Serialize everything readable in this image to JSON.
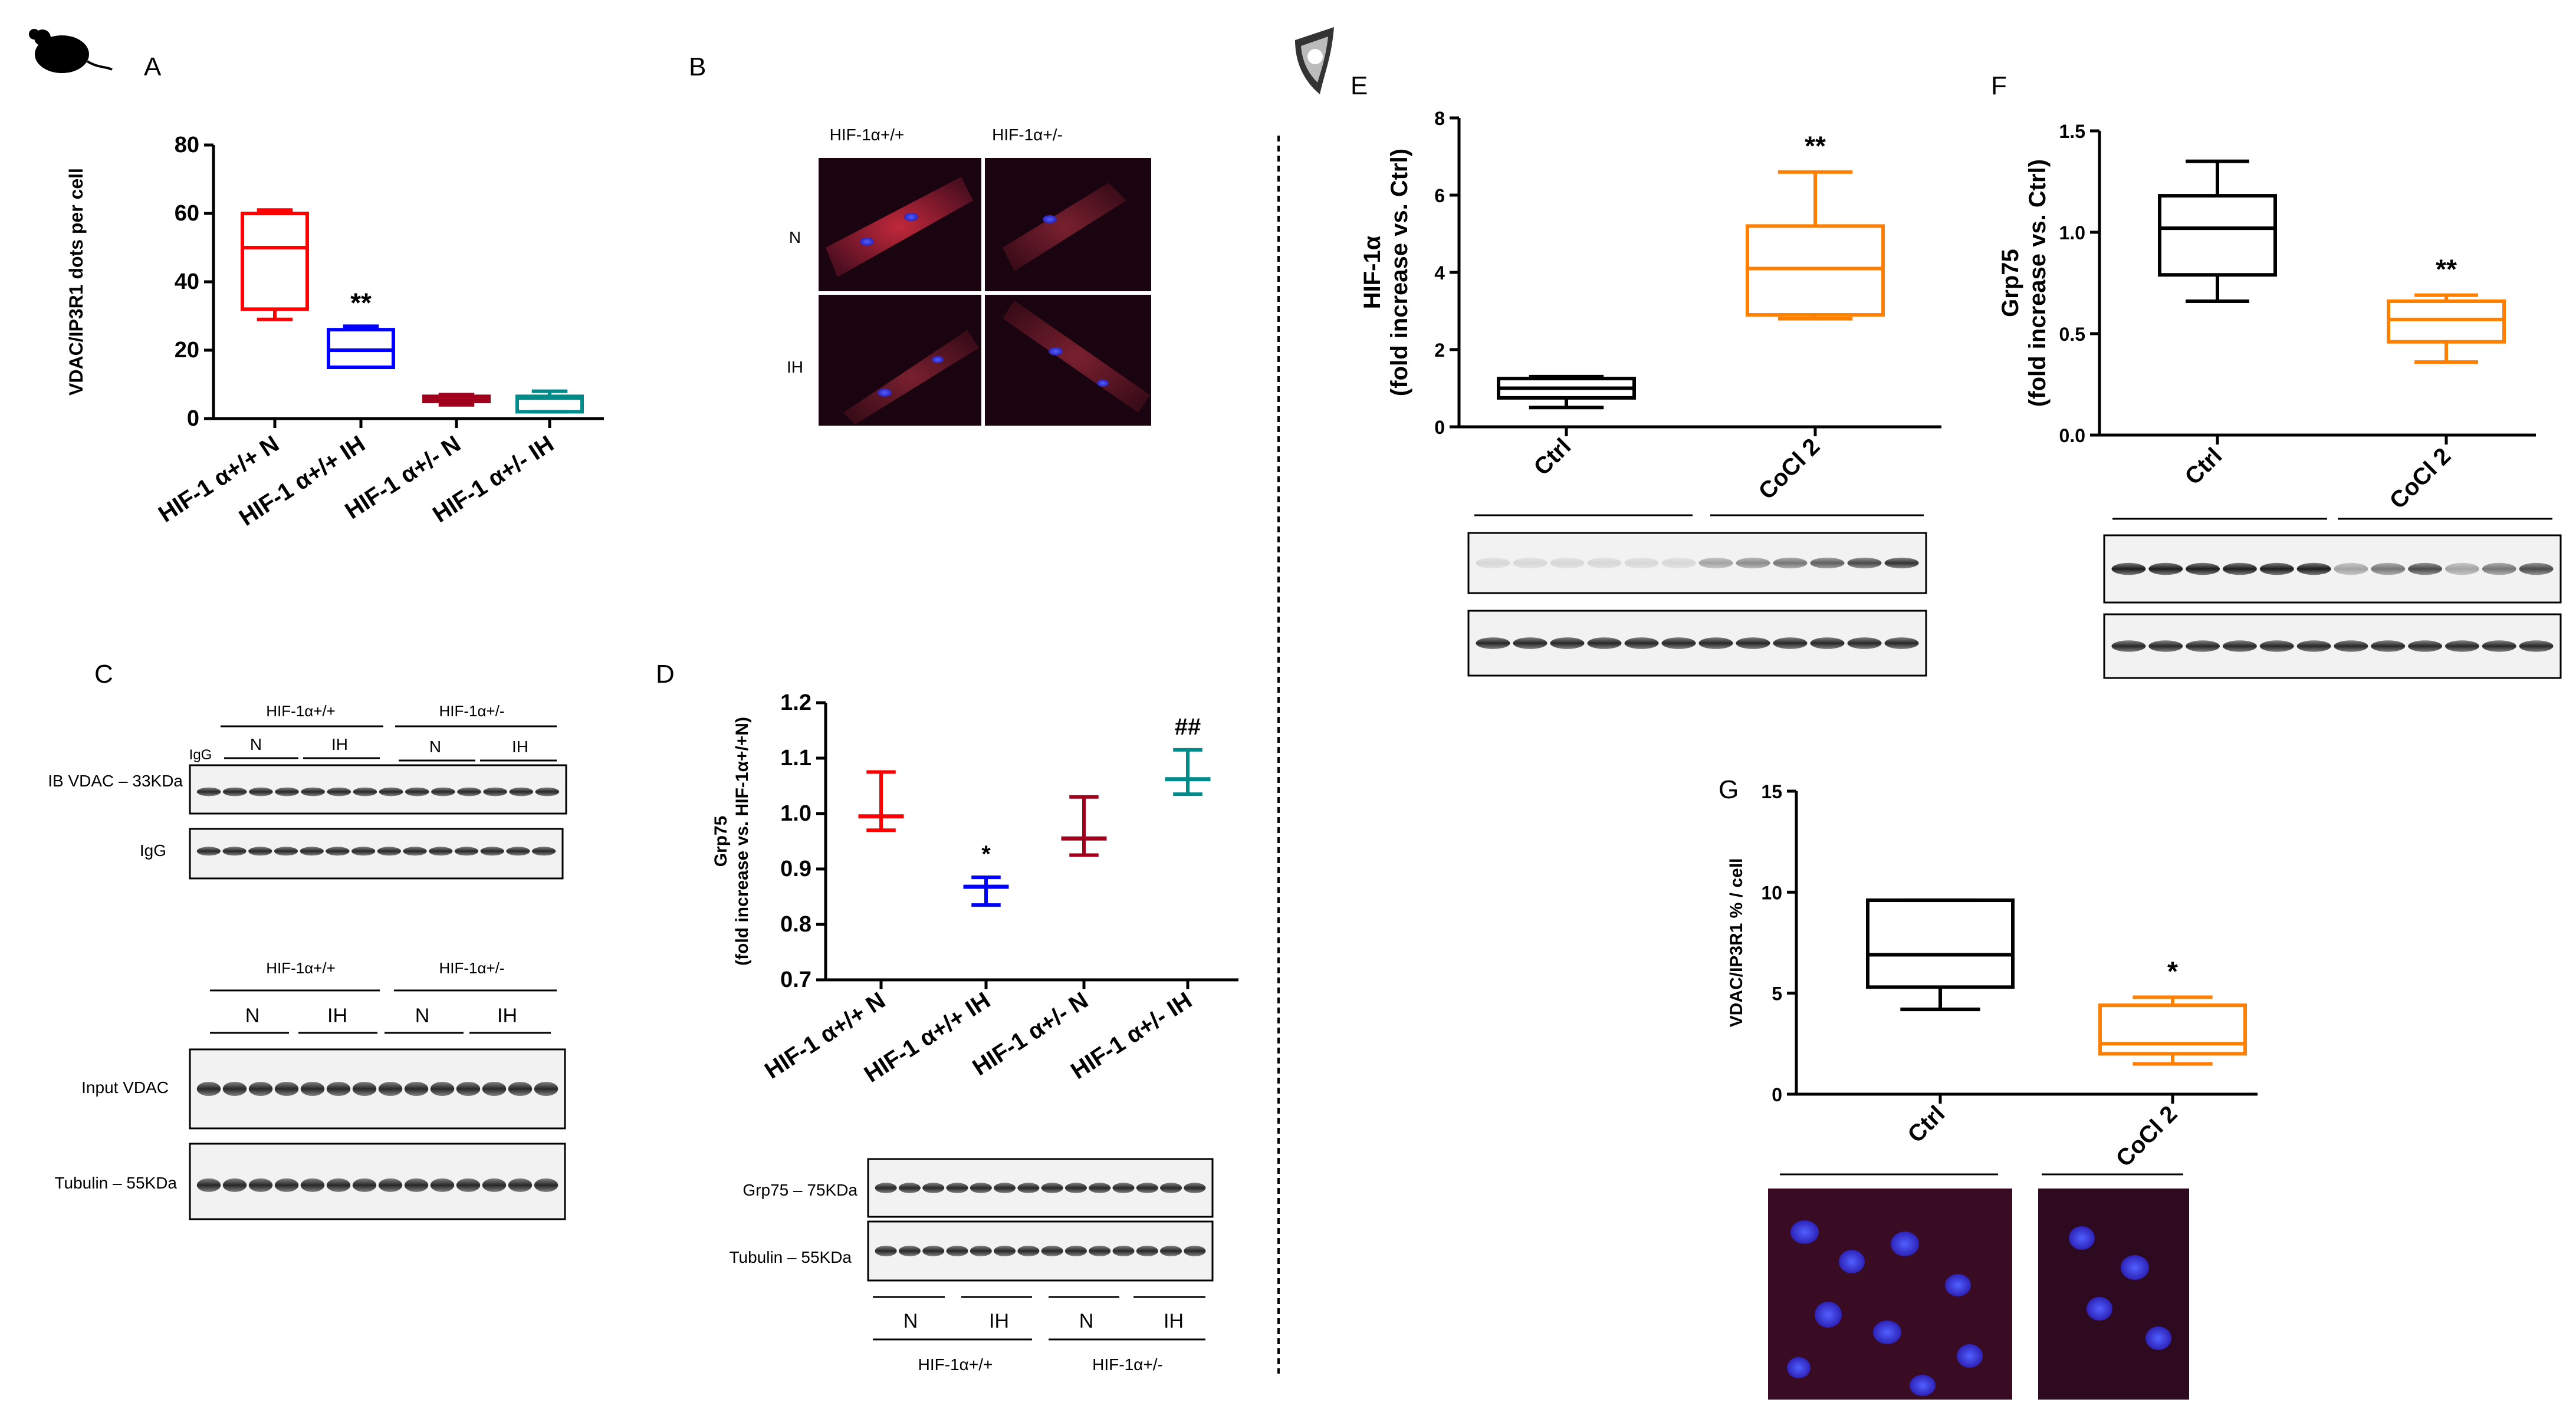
{
  "panels": {
    "A": {
      "letter": "A"
    },
    "B": {
      "letter": "B",
      "col_labels": [
        "HIF-1α+/+",
        "HIF-1α+/-"
      ],
      "row_labels": [
        "N",
        "IH"
      ]
    },
    "C": {
      "letter": "C",
      "top_groups": [
        "HIF-1α+/+",
        "HIF-1α+/-"
      ],
      "top_conditions": [
        "N",
        "IH",
        "N",
        "IH"
      ],
      "igg_lane": "IgG",
      "blot_labels": [
        "IB VDAC – 33KDa",
        "IgG"
      ],
      "bottom_groups": [
        "HIF-1α+/+",
        "HIF-1α+/-"
      ],
      "bottom_conditions": [
        "N",
        "IH",
        "N",
        "IH"
      ],
      "bottom_blot_labels": [
        "Input VDAC",
        "Tubulin – 55KDa"
      ]
    },
    "D": {
      "letter": "D",
      "blot_labels": [
        "Grp75 – 75KDa",
        "Tubulin – 55KDa"
      ],
      "conditions": [
        "N",
        "IH",
        "N",
        "IH"
      ],
      "groups": [
        "HIF-1α+/+",
        "HIF-1α+/-"
      ]
    },
    "E": {
      "letter": "E",
      "blot_groups": [
        "Ctrl",
        "CoCl2"
      ]
    },
    "F": {
      "letter": "F",
      "blot_groups": [
        "Ctrl",
        "CoCl2"
      ]
    },
    "G": {
      "letter": "G"
    }
  },
  "chart_data": [
    {
      "panel": "A",
      "type": "box",
      "ylabel": "VDAC/IP3R1 dots per cell",
      "ylim": [
        0,
        80
      ],
      "yticks": [
        "0",
        "20",
        "40",
        "60",
        "80"
      ],
      "categories": [
        "HIF-1  α+/+ N",
        "HIF-1  α+/+ IH",
        "HIF-1  α+/- N",
        "HIF-1  α+/- IH"
      ],
      "series": [
        {
          "color": "#ff0000",
          "min": 29,
          "q1": 32,
          "median": 50,
          "q3": 60,
          "max": 61
        },
        {
          "color": "#0000ff",
          "min": 15,
          "q1": 15,
          "median": 20,
          "q3": 26,
          "max": 27,
          "sig": "**"
        },
        {
          "color": "#a0001c",
          "min": 4,
          "q1": 5,
          "median": 5.5,
          "q3": 6.5,
          "max": 7
        },
        {
          "color": "#008b8b",
          "min": 2,
          "q1": 2,
          "median": 6,
          "q3": 6.5,
          "max": 8
        }
      ]
    },
    {
      "panel": "D",
      "type": "errorbar",
      "ylabel": "Grp75",
      "ylabel2": "(fold increase vs. HIF-1α+/+N)",
      "ylim": [
        0.7,
        1.2
      ],
      "yticks": [
        "0.7",
        "0.8",
        "0.9",
        "1.0",
        "1.1",
        "1.2"
      ],
      "categories": [
        "HIF-1  α+/+ N",
        "HIF-1  α+/+ IH",
        "HIF-1  α+/- N",
        "HIF-1  α+/- IH"
      ],
      "series": [
        {
          "color": "#ff0000",
          "mean": 0.995,
          "low": 0.97,
          "high": 1.075
        },
        {
          "color": "#0000ff",
          "mean": 0.868,
          "low": 0.835,
          "high": 0.885,
          "sig": "*"
        },
        {
          "color": "#a0001c",
          "mean": 0.955,
          "low": 0.925,
          "high": 1.03
        },
        {
          "color": "#008b8b",
          "mean": 1.062,
          "low": 1.035,
          "high": 1.115,
          "sig": "##"
        }
      ]
    },
    {
      "panel": "E",
      "type": "box",
      "ylabel": "HIF-1α",
      "ylabel2": "(fold increase vs. Ctrl)",
      "ylim": [
        0,
        8
      ],
      "yticks": [
        "0",
        "2",
        "4",
        "6",
        "8"
      ],
      "categories": [
        "Ctrl",
        "CoCl 2"
      ],
      "series": [
        {
          "color": "#000000",
          "min": 0.5,
          "q1": 0.75,
          "median": 1.0,
          "q3": 1.25,
          "max": 1.3
        },
        {
          "color": "#ff8000",
          "min": 2.8,
          "q1": 2.9,
          "median": 4.1,
          "q3": 5.2,
          "max": 6.6,
          "sig": "**"
        }
      ]
    },
    {
      "panel": "F",
      "type": "box",
      "ylabel": "Grp75",
      "ylabel2": "(fold increase vs. Ctrl)",
      "ylim": [
        0,
        1.5
      ],
      "yticks": [
        "0.0",
        "0.5",
        "1.0",
        "1.5"
      ],
      "categories": [
        "Ctrl",
        "CoCl 2"
      ],
      "series": [
        {
          "color": "#000000",
          "min": 0.66,
          "q1": 0.79,
          "median": 1.02,
          "q3": 1.18,
          "max": 1.35
        },
        {
          "color": "#ff8000",
          "min": 0.36,
          "q1": 0.46,
          "median": 0.57,
          "q3": 0.66,
          "max": 0.69,
          "sig": "**"
        }
      ]
    },
    {
      "panel": "G",
      "type": "box",
      "ylabel": "VDAC/IP3R1 % / cell",
      "ylim": [
        0,
        15
      ],
      "yticks": [
        "0",
        "5",
        "10",
        "15"
      ],
      "categories": [
        "Ctrl",
        "CoCl 2"
      ],
      "series": [
        {
          "color": "#000000",
          "min": 4.2,
          "q1": 5.3,
          "median": 6.9,
          "q3": 9.6,
          "max": 9.6
        },
        {
          "color": "#ff8000",
          "min": 1.5,
          "q1": 2.0,
          "median": 2.5,
          "q3": 4.4,
          "max": 4.8,
          "sig": "*"
        }
      ]
    }
  ]
}
